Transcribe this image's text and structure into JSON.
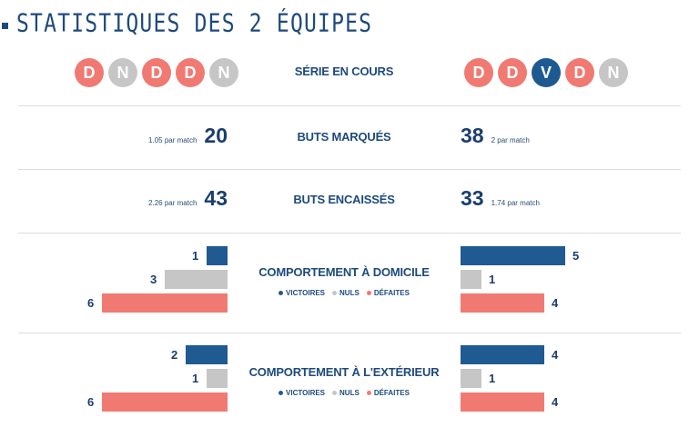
{
  "title": "STATISTIQUES DES 2 ÉQUIPES",
  "serie": {
    "label": "SÉRIE EN COURS",
    "left": [
      "D",
      "N",
      "D",
      "D",
      "N"
    ],
    "right": [
      "D",
      "D",
      "V",
      "D",
      "N"
    ]
  },
  "buts_marques": {
    "label": "BUTS MARQUÉS",
    "left_value": "20",
    "left_per": "1.05 par match",
    "right_value": "38",
    "right_per": "2 par match"
  },
  "buts_encaisses": {
    "label": "BUTS ENCAISSÉS",
    "left_value": "43",
    "left_per": "2.26 par match",
    "right_value": "33",
    "right_per": "1.74 par match"
  },
  "domicile": {
    "label": "COMPORTEMENT À DOMICILE",
    "left": {
      "victoires": 1,
      "nuls": 3,
      "defaites": 6
    },
    "right": {
      "victoires": 5,
      "nuls": 1,
      "defaites": 4
    }
  },
  "exterieur": {
    "label": "COMPORTEMENT À L'EXTÉRIEUR",
    "left": {
      "victoires": 2,
      "nuls": 1,
      "defaites": 6
    },
    "right": {
      "victoires": 4,
      "nuls": 1,
      "defaites": 4
    }
  },
  "legend": {
    "victoires": "VICTOIRES",
    "nuls": "NULS",
    "defaites": "DÉFAITES"
  },
  "colors": {
    "victoire": "#1f5a92",
    "nul": "#c6c6c6",
    "defaite": "#f07a72",
    "text": "#1e4a7b"
  }
}
